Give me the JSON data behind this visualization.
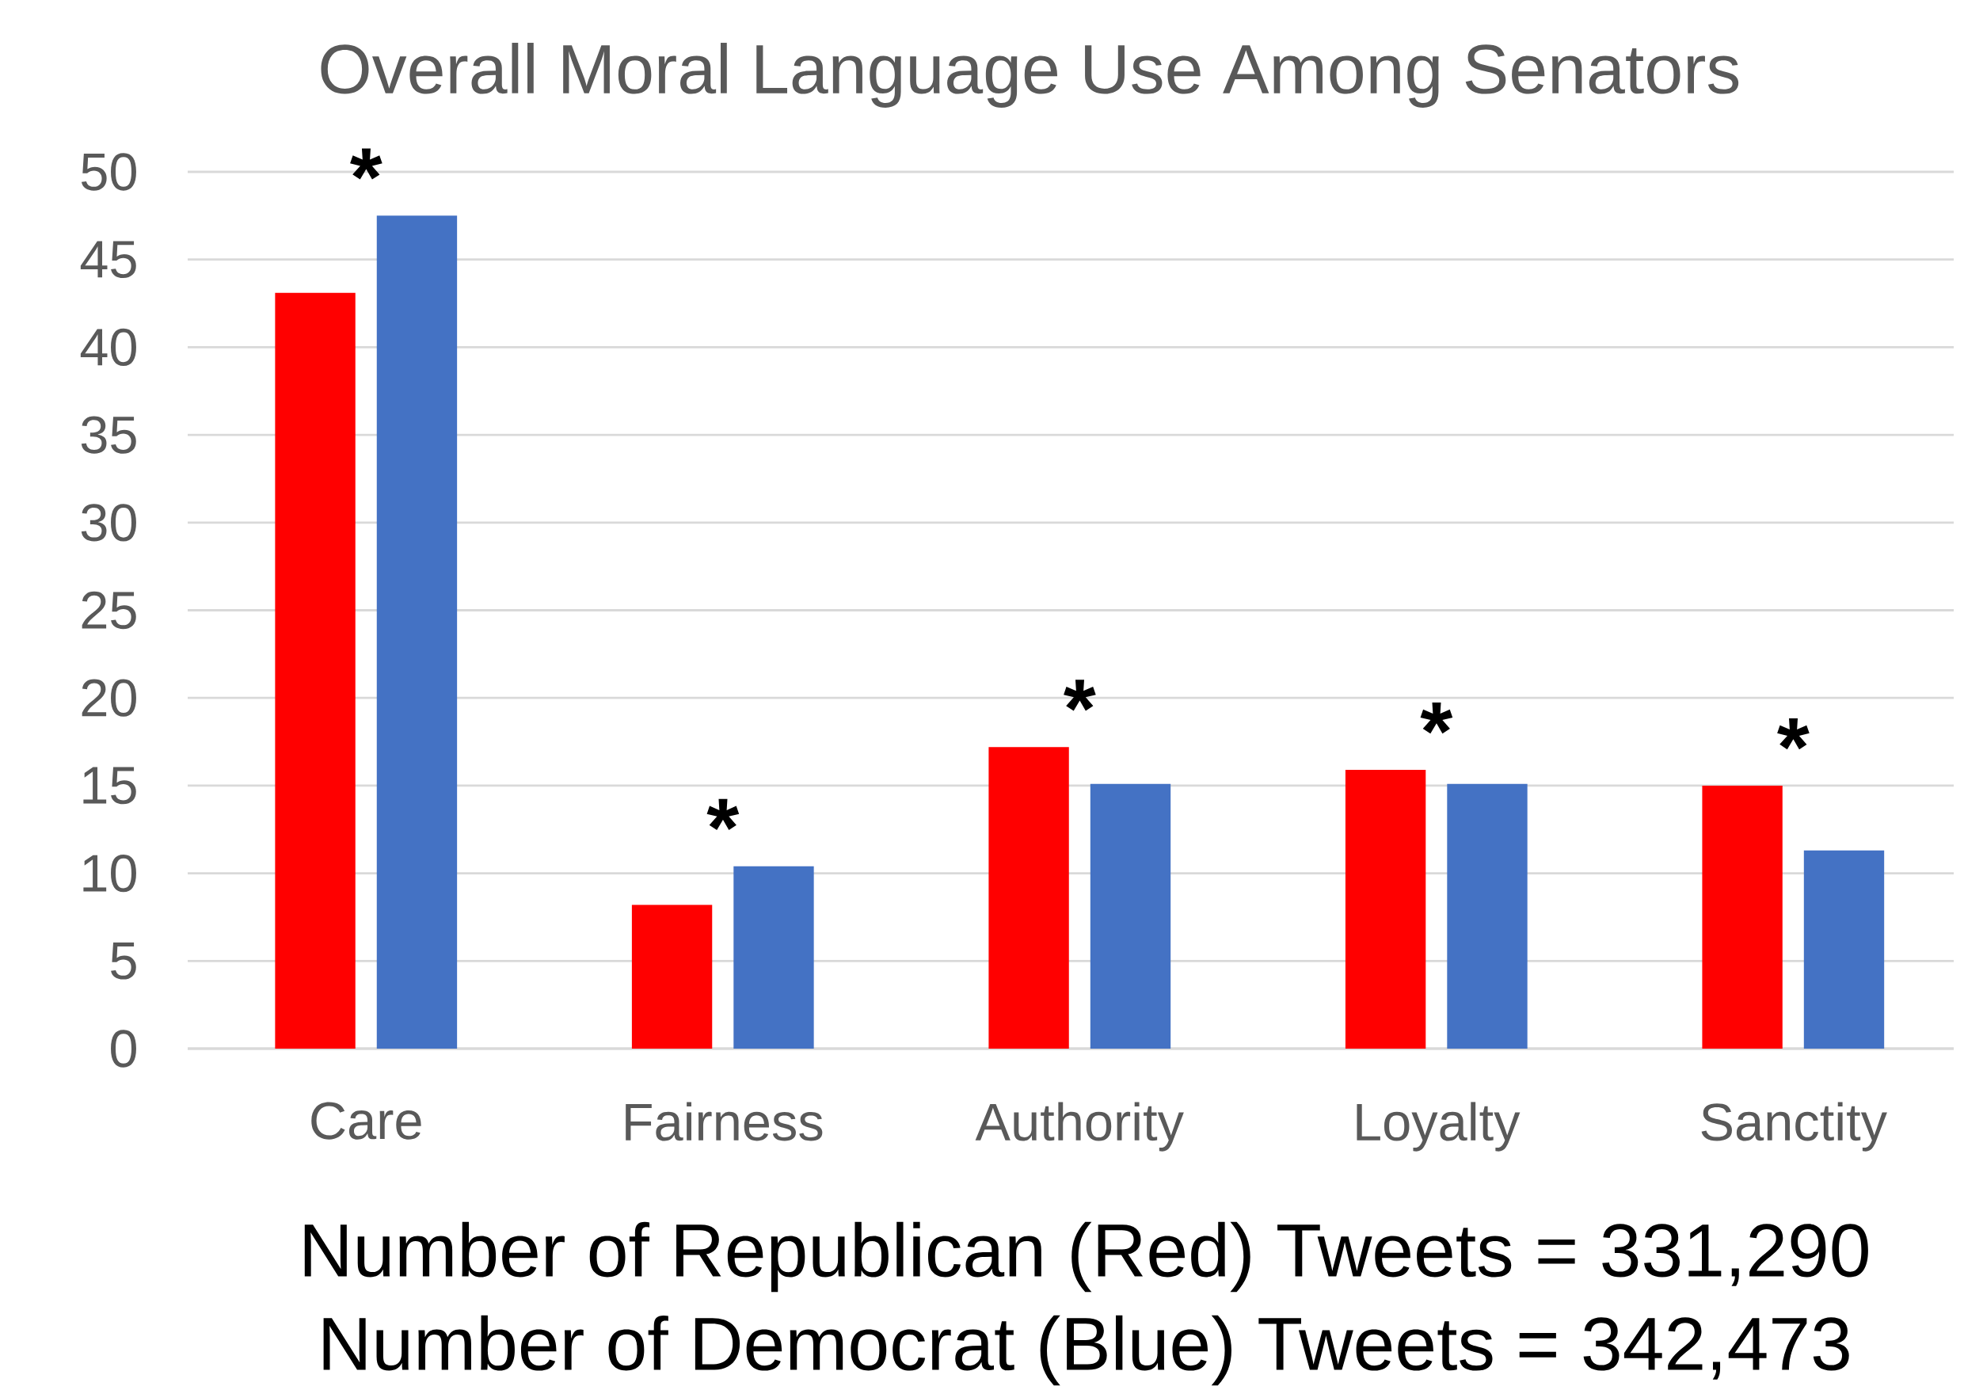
{
  "chart_data": {
    "type": "bar",
    "title": "Overall Moral Language Use Among Senators",
    "categories": [
      "Care",
      "Fairness",
      "Authority",
      "Loyalty",
      "Sanctity"
    ],
    "series": [
      {
        "color": "#ff0000",
        "values": [
          43.1,
          8.2,
          17.2,
          15.9,
          15.0
        ]
      },
      {
        "color": "#4472c4",
        "values": [
          47.5,
          10.4,
          15.1,
          15.1,
          11.3
        ]
      }
    ],
    "ylim": [
      0,
      50
    ],
    "yticks": [
      0,
      5,
      10,
      15,
      20,
      25,
      30,
      35,
      40,
      45,
      50
    ],
    "grid": "y",
    "annotations": [
      "*",
      "*",
      "*",
      "*",
      "*",
      "Number of Republican (Red) Tweets = 331,290",
      "Number of Democrat (Blue) Tweets = 342,473"
    ]
  }
}
